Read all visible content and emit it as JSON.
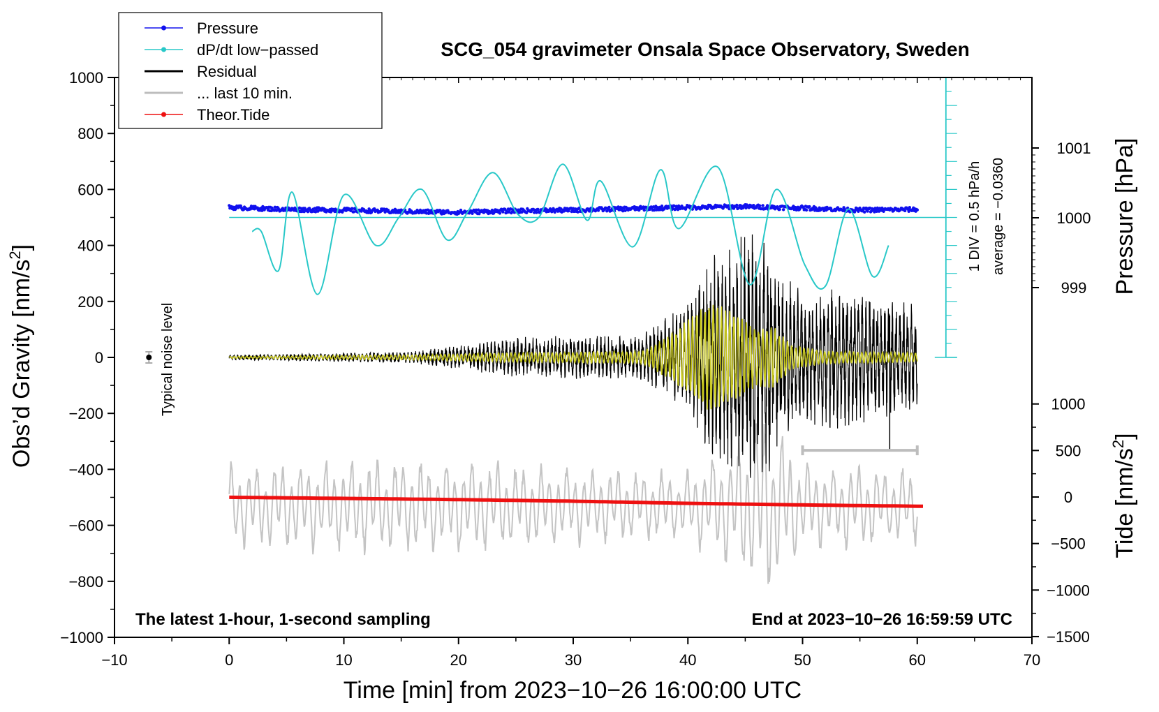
{
  "chart_data": {
    "type": "line",
    "title": "SCG_054 gravimeter Onsala Space Observatory, Sweden",
    "xlabel": "Time [min] from 2023−10−26 16:00:00 UTC",
    "ylabel_main": "Obs’d Gravity [nm/s",
    "ylabel_sup": "2",
    "ylabel_close": "]",
    "xlim": [
      -10,
      70
    ],
    "ylim": [
      -1000,
      1000
    ],
    "x_ticks": [
      -10,
      0,
      10,
      20,
      30,
      40,
      50,
      60,
      70
    ],
    "x_tick_labels": [
      "−10",
      "0",
      "10",
      "20",
      "30",
      "40",
      "50",
      "60",
      "70"
    ],
    "y_ticks": [
      1000,
      800,
      600,
      400,
      200,
      0,
      -200,
      -400,
      -600,
      -800,
      -1000
    ],
    "y_tick_labels": [
      "1000",
      "800",
      "600",
      "400",
      "200",
      "0",
      "−200",
      "−400",
      "−600",
      "−800",
      "−1000"
    ],
    "pressure_axis": {
      "label": "Pressure [hPa]",
      "ticks": [
        1001,
        1000,
        999
      ],
      "tick_labels": [
        "1001",
        "1000",
        "999"
      ]
    },
    "tide_axis": {
      "label_main": "Tide [nm/s",
      "label_sup": "2",
      "label_close": "]",
      "ticks": [
        1000,
        500,
        0,
        -500,
        -1000,
        -1500
      ],
      "tick_labels": [
        "1000",
        "500",
        "0",
        "−500",
        "−1000",
        "−1500"
      ]
    },
    "dpdt_scale_label": "1 DIV = 0.5 hPa/h",
    "dpdt_average_label": "average = −0.0360",
    "noise_label": "Typical noise level",
    "footer_left": "The latest 1-hour, 1-second sampling",
    "footer_right": "End at 2023−10−26 16:59:59 UTC",
    "legend": [
      {
        "label": "Pressure",
        "color": "#1010ee",
        "marker": true
      },
      {
        "label": "dP/dt low−passed",
        "color": "#28c8c8",
        "marker": true
      },
      {
        "label": "Residual",
        "color": "#000000",
        "marker": false
      },
      {
        "label": "... last 10 min.",
        "color": "#bdbdbd",
        "marker": false
      },
      {
        "label": "Theor.Tide",
        "color": "#ee1010",
        "marker": true
      }
    ],
    "series": [
      {
        "name": "Pressure",
        "units": "hPa",
        "x": [
          0,
          5,
          10,
          15,
          20,
          25,
          30,
          35,
          40,
          45,
          50,
          55,
          60
        ],
        "values": [
          1000.15,
          1000.12,
          1000.11,
          1000.09,
          1000.08,
          1000.1,
          1000.11,
          1000.13,
          1000.15,
          1000.16,
          1000.14,
          1000.11,
          1000.12
        ]
      },
      {
        "name": "dP/dt low−passed",
        "units": "gravity-axis nm/s2 (baseline 500)",
        "x": [
          2,
          2.8,
          4.3,
          5.5,
          7.7,
          10,
          12.8,
          14.8,
          16.8,
          19,
          20.8,
          23,
          25.2,
          27,
          29.1,
          31.2,
          32.4,
          35.2,
          37.6,
          39.2,
          42.6,
          45.4,
          47.7,
          50.2,
          52,
          54,
          56.1,
          57.5
        ],
        "values": [
          450,
          450,
          310,
          590,
          225,
          580,
          400,
          500,
          600,
          420,
          520,
          660,
          510,
          500,
          690,
          490,
          630,
          395,
          670,
          460,
          680,
          260,
          600,
          330,
          255,
          530,
          290,
          400
        ]
      },
      {
        "name": "Residual",
        "units": "nm/s2",
        "x": [
          0,
          16,
          25,
          36,
          40,
          42,
          45,
          47,
          48,
          50,
          53,
          57.6,
          60
        ],
        "envelope": [
          8,
          20,
          70,
          80,
          200,
          350,
          420,
          430,
          300,
          220,
          250,
          200,
          180
        ]
      },
      {
        "name": "... last 10 min.",
        "units": "nm/s2",
        "x": [
          0,
          10,
          20,
          30,
          40,
          45.5,
          46.5,
          50,
          60
        ],
        "envelope": [
          150,
          170,
          180,
          140,
          130,
          280,
          370,
          160,
          140
        ],
        "center": -530
      },
      {
        "name": "Theor.Tide",
        "units": "nm/s2",
        "x": [
          0,
          10,
          20,
          30,
          40,
          50,
          60.5
        ],
        "values": [
          -3,
          -15,
          -28,
          -45,
          -68,
          -85,
          -100
        ]
      }
    ],
    "reference_bar": {
      "x": [
        50,
        60
      ],
      "y": -332
    }
  }
}
